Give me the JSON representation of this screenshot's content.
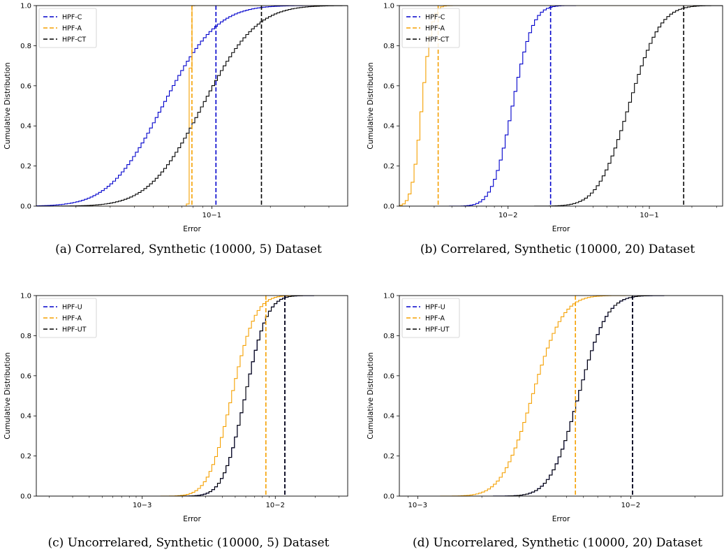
{
  "chart_data": [
    {
      "type": "line",
      "caption": "(a) Correlared, Synthetic (10000, 5) Dataset",
      "xlabel": "Error",
      "ylabel": "Cumulative Distribution",
      "x_scale": "log",
      "xlim": [
        0.0125,
        0.5
      ],
      "ylim": [
        0,
        1
      ],
      "x_ticks": [
        {
          "value": 0.1,
          "label": "10−1"
        }
      ],
      "y_ticks": [
        0.0,
        0.2,
        0.4,
        0.6,
        0.8,
        1.0
      ],
      "legend": "top-left",
      "series": [
        {
          "name": "HPF-C",
          "color": "#0000cc",
          "kind": "cdf",
          "median": 0.055,
          "sigma": 0.5,
          "vline": 0.105
        },
        {
          "name": "HPF-A",
          "color": "#f5a000",
          "kind": "cdf",
          "median": 0.076,
          "sigma": 0.012,
          "vline": 0.079
        },
        {
          "name": "HPF-CT",
          "color": "#000000",
          "kind": "cdf",
          "median": 0.088,
          "sigma": 0.5,
          "vline": 0.18
        }
      ]
    },
    {
      "type": "line",
      "caption": "(b) Correlared, Synthetic (10000, 20) Dataset",
      "xlabel": "Error",
      "ylabel": "Cumulative Distribution",
      "x_scale": "log",
      "xlim": [
        0.0017,
        0.33
      ],
      "ylim": [
        0,
        1
      ],
      "x_ticks": [
        {
          "value": 0.01,
          "label": "10−2"
        },
        {
          "value": 0.1,
          "label": "10−1"
        }
      ],
      "y_ticks": [
        0.0,
        0.2,
        0.4,
        0.6,
        0.8,
        1.0
      ],
      "legend": "top-left",
      "series": [
        {
          "name": "HPF-C",
          "color": "#0000cc",
          "kind": "cdf",
          "median": 0.0105,
          "sigma": 0.26,
          "vline": 0.02
        },
        {
          "name": "HPF-A",
          "color": "#f5a000",
          "kind": "cdf",
          "median": 0.0024,
          "sigma": 0.13,
          "vline": 0.0032
        },
        {
          "name": "HPF-CT",
          "color": "#000000",
          "kind": "cdf",
          "median": 0.07,
          "sigma": 0.4,
          "vline": 0.175
        }
      ]
    },
    {
      "type": "line",
      "caption": "(c) Uncorrelared, Synthetic (10000, 5) Dataset",
      "xlabel": "Error",
      "ylabel": "Cumulative Distribution",
      "x_scale": "log",
      "xlim": [
        0.00016,
        0.035
      ],
      "ylim": [
        0,
        1
      ],
      "x_ticks": [
        {
          "value": 0.001,
          "label": "10−3"
        },
        {
          "value": 0.01,
          "label": "10−2"
        }
      ],
      "y_ticks": [
        0.0,
        0.2,
        0.4,
        0.6,
        0.8,
        1.0
      ],
      "legend": "top-left",
      "series": [
        {
          "name": "HPF-U",
          "color": "#0000cc",
          "kind": "cdf",
          "median": 0.0058,
          "sigma": 0.3,
          "vline": 0.0118
        },
        {
          "name": "HPF-A",
          "color": "#f5a000",
          "kind": "cdf",
          "median": 0.0046,
          "sigma": 0.32,
          "vline": 0.0085
        },
        {
          "name": "HPF-UT",
          "color": "#000000",
          "kind": "cdf",
          "median": 0.0058,
          "sigma": 0.3,
          "vline": 0.0118
        }
      ]
    },
    {
      "type": "line",
      "caption": "(d) Uncorrelared, Synthetic (10000, 20) Dataset",
      "xlabel": "Error",
      "ylabel": "Cumulative Distribution",
      "x_scale": "log",
      "xlim": [
        0.00082,
        0.027
      ],
      "ylim": [
        0,
        1
      ],
      "x_ticks": [
        {
          "value": 0.001,
          "label": "10−3"
        },
        {
          "value": 0.01,
          "label": "10−2"
        }
      ],
      "y_ticks": [
        0.0,
        0.2,
        0.4,
        0.6,
        0.8,
        1.0
      ],
      "legend": "top-left",
      "series": [
        {
          "name": "HPF-U",
          "color": "#0000cc",
          "kind": "cdf",
          "median": 0.0056,
          "sigma": 0.24,
          "vline": 0.0102
        },
        {
          "name": "HPF-A",
          "color": "#f5a000",
          "kind": "cdf",
          "median": 0.0034,
          "sigma": 0.26,
          "vline": 0.0055
        },
        {
          "name": "HPF-UT",
          "color": "#000000",
          "kind": "cdf",
          "median": 0.0056,
          "sigma": 0.24,
          "vline": 0.0102
        }
      ]
    }
  ]
}
